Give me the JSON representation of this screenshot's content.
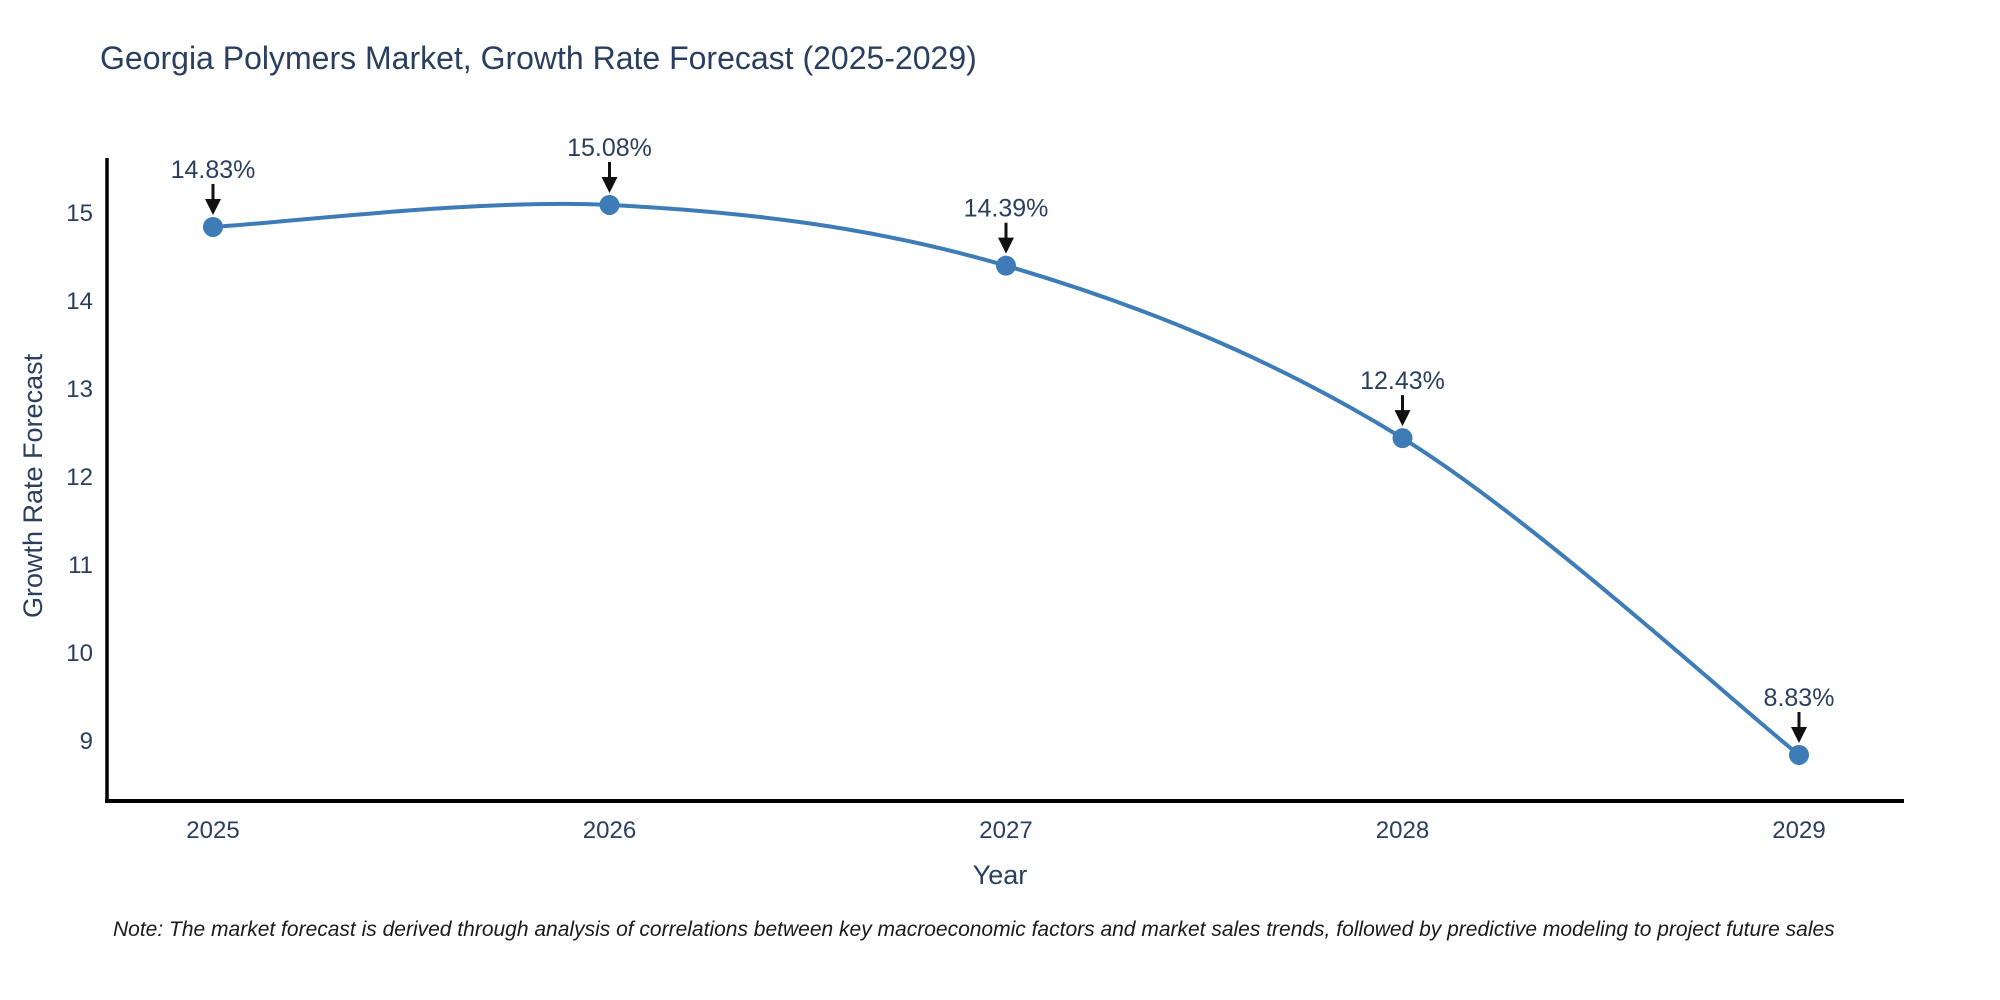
{
  "title": "Georgia Polymers Market, Growth Rate Forecast (2025-2029)",
  "note": "Note: The market forecast is derived through analysis of correlations between key macroeconomic factors and market sales trends, followed by predictive modeling to project future sales",
  "chart_data": {
    "type": "line",
    "line_shape": "spline",
    "title": "Georgia Polymers Market, Growth Rate Forecast (2025-2029)",
    "xlabel": "Year",
    "ylabel": "Growth Rate Forecast",
    "x": [
      2025,
      2026,
      2027,
      2028,
      2029
    ],
    "values": [
      14.83,
      15.08,
      14.39,
      12.43,
      8.83
    ],
    "point_labels": [
      "14.83%",
      "15.08%",
      "14.39%",
      "12.43%",
      "8.83%"
    ],
    "y_ticks": [
      9,
      10,
      11,
      12,
      13,
      14,
      15
    ],
    "ylim": [
      8.3,
      15.62
    ],
    "grid": false,
    "legend": "none",
    "colors": {
      "line": "#3e7cb8",
      "marker": "#3e7cb8",
      "axis_line": "#000000",
      "tick_text": "#2a3f5f",
      "annotation_text": "#2a3f5f",
      "annotation_arrow": "#111111",
      "background": "#ffffff"
    }
  }
}
